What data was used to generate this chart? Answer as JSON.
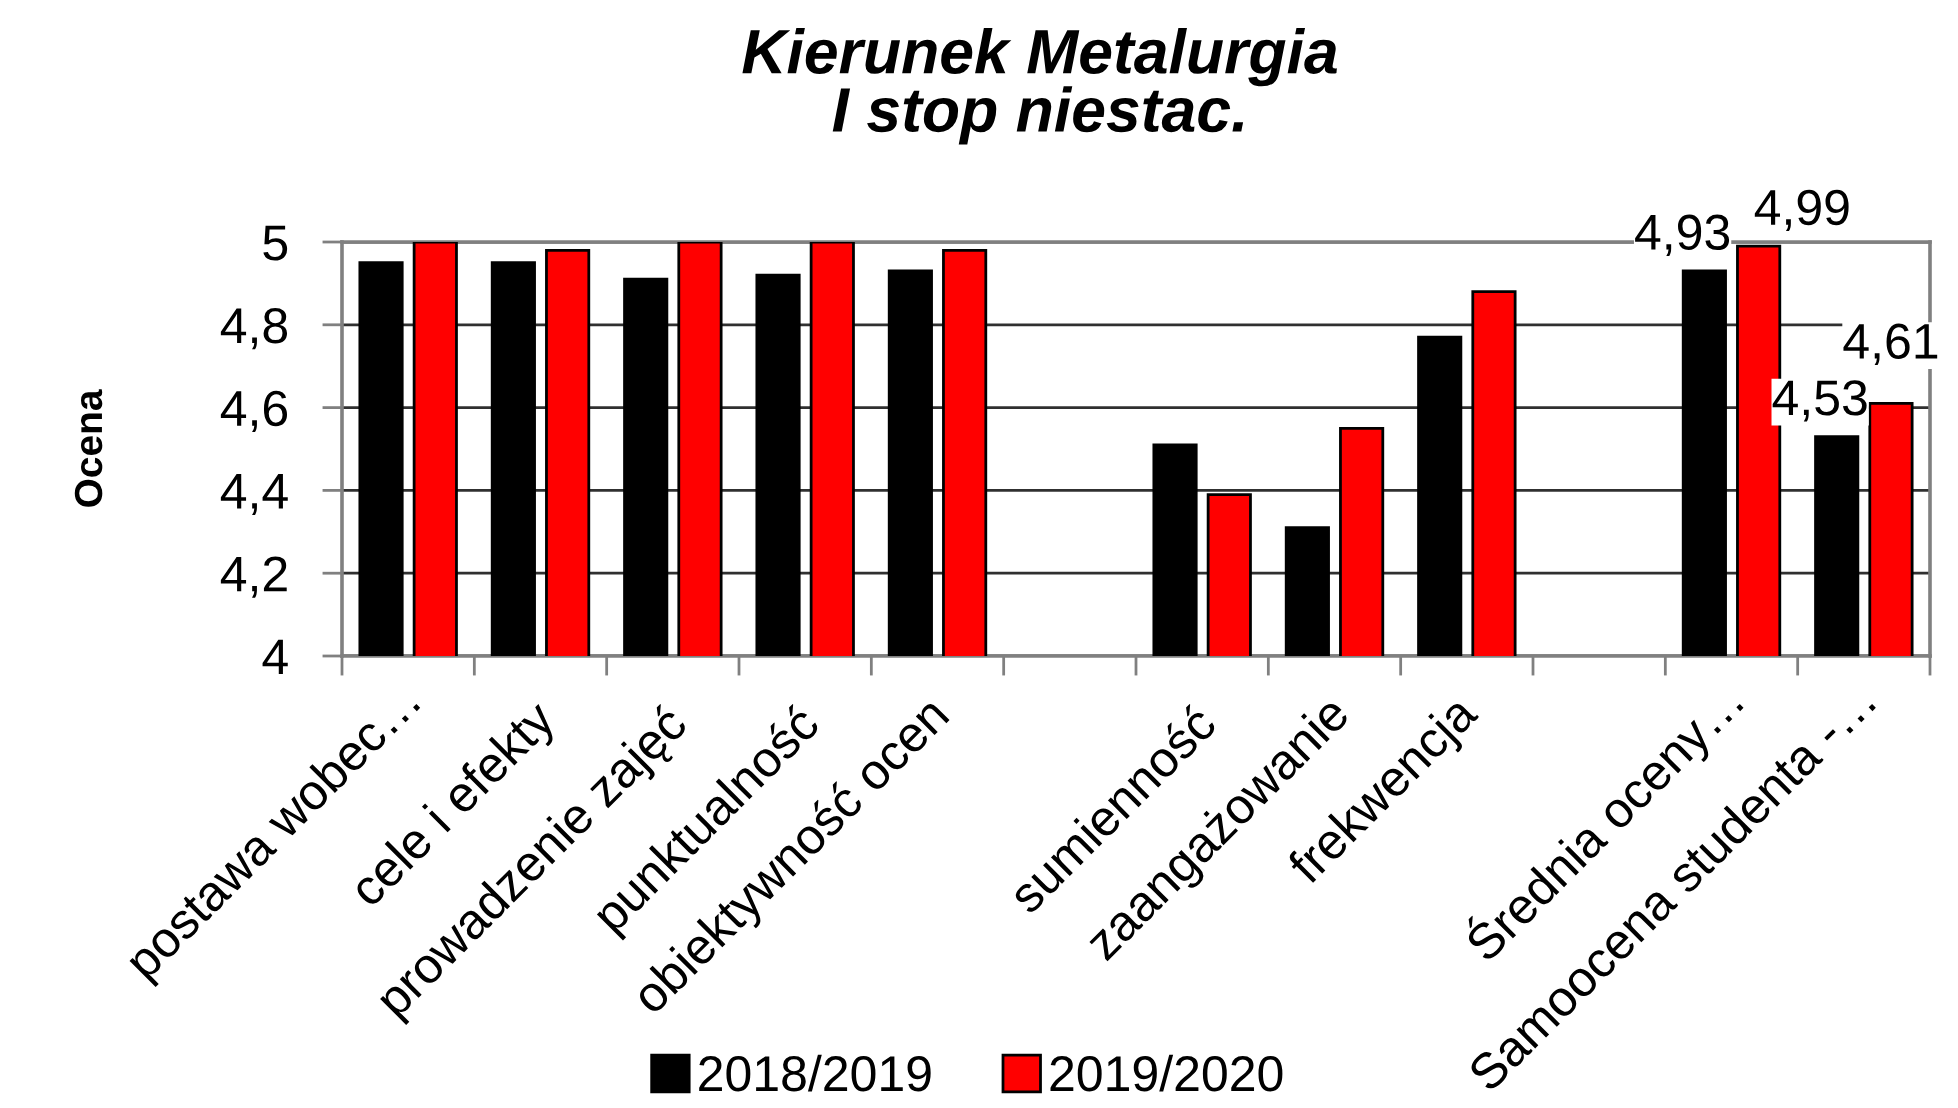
{
  "chart_data": {
    "type": "bar",
    "title": "Kierunek Metalurgia\nI stop niestac.",
    "ylabel": "Ocena",
    "categories": [
      "postawa wobec…",
      "cele i efekty",
      "prowadzenie zajęć",
      "punktualność",
      "obiektywność ocen",
      null,
      "sumienność",
      "zaangażowanie",
      "frekwencja",
      null,
      "Średnia oceny…",
      "Samoocena studenta -…"
    ],
    "series": [
      {
        "name": "2018/2019",
        "color": "#000000",
        "values": [
          4.95,
          4.95,
          4.91,
          4.92,
          4.93,
          null,
          4.51,
          4.31,
          4.77,
          null,
          4.93,
          4.53
        ],
        "value_labels": [
          null,
          null,
          null,
          null,
          null,
          null,
          null,
          null,
          null,
          null,
          "4,93",
          "4,53"
        ]
      },
      {
        "name": "2019/2020",
        "color": "#ff0000",
        "values": [
          5,
          4.98,
          5,
          5,
          4.98,
          null,
          4.39,
          4.55,
          4.88,
          null,
          4.99,
          4.61
        ],
        "value_labels": [
          null,
          null,
          null,
          null,
          null,
          null,
          null,
          null,
          null,
          null,
          "4,99",
          "4,61"
        ]
      }
    ],
    "ylim": [
      4,
      5
    ],
    "yticks": [
      4,
      {
        "value": 4.2,
        "label": "4,2"
      },
      {
        "value": 4.4,
        "label": "4,4"
      },
      {
        "value": 4.6,
        "label": "4,6"
      },
      {
        "value": 4.8,
        "label": "4,8"
      },
      5
    ],
    "grid": "y",
    "legend": "bottom"
  }
}
